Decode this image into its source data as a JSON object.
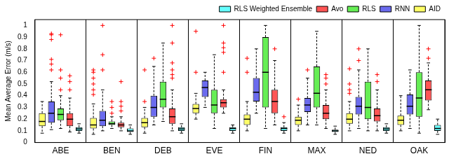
{
  "chart_data": {
    "type": "boxplot",
    "y_label": "Mean Average Error (m/s)",
    "categories": [
      "ABE",
      "BEN",
      "DEB",
      "EVE",
      "FIN",
      "MAX",
      "NED",
      "OAK"
    ],
    "ylim": [
      0,
      1.05
    ],
    "yticks": [
      0,
      0.1,
      0.2,
      0.3,
      0.4,
      0.5,
      0.6,
      0.7,
      0.8,
      0.9,
      1
    ],
    "grid": false,
    "legend": "top",
    "series": [
      {
        "name": "RLS Weighted Ensemble",
        "color": "#66ffff",
        "values": [
          {
            "min": 0.08,
            "q1": 0.1,
            "median": 0.115,
            "q3": 0.13,
            "max": 0.16,
            "outliers": []
          },
          {
            "min": 0.07,
            "q1": 0.09,
            "median": 0.1,
            "q3": 0.12,
            "max": 0.15,
            "outliers": []
          },
          {
            "min": 0.08,
            "q1": 0.1,
            "median": 0.115,
            "q3": 0.13,
            "max": 0.16,
            "outliers": []
          },
          {
            "min": 0.08,
            "q1": 0.1,
            "median": 0.12,
            "q3": 0.13,
            "max": 0.15,
            "outliers": []
          },
          {
            "min": 0.08,
            "q1": 0.1,
            "median": 0.12,
            "q3": 0.13,
            "max": 0.17,
            "outliers": [
              0.22
            ]
          },
          {
            "min": 0.07,
            "q1": 0.09,
            "median": 0.1,
            "q3": 0.11,
            "max": 0.14,
            "outliers": []
          },
          {
            "min": 0.08,
            "q1": 0.1,
            "median": 0.115,
            "q3": 0.13,
            "max": 0.16,
            "outliers": []
          },
          {
            "min": 0.07,
            "q1": 0.1,
            "median": 0.12,
            "q3": 0.15,
            "max": 0.2,
            "outliers": []
          }
        ]
      },
      {
        "name": "Avo",
        "color": "#ff5555",
        "values": [
          {
            "min": 0.09,
            "q1": 0.14,
            "median": 0.2,
            "q3": 0.25,
            "max": 0.38,
            "outliers": [
              0.45,
              0.52,
              0.57
            ]
          },
          {
            "min": 0.1,
            "q1": 0.13,
            "median": 0.15,
            "q3": 0.17,
            "max": 0.22,
            "outliers": [
              0.27,
              0.31,
              0.35,
              0.52
            ]
          },
          {
            "min": 0.1,
            "q1": 0.16,
            "median": 0.22,
            "q3": 0.29,
            "max": 0.45,
            "outliers": [
              0.55,
              0.58,
              0.62,
              0.68,
              0.85,
              1.0
            ]
          },
          {
            "min": 0.25,
            "q1": 0.3,
            "median": 0.34,
            "q3": 0.37,
            "max": 0.45,
            "outliers": [
              0.6,
              0.77,
              0.81,
              0.85,
              1.0
            ]
          },
          {
            "min": 0.15,
            "q1": 0.25,
            "median": 0.35,
            "q3": 0.45,
            "max": 0.7,
            "outliers": [
              0.8
            ]
          },
          {
            "min": 0.12,
            "q1": 0.2,
            "median": 0.25,
            "q3": 0.32,
            "max": 0.45,
            "outliers": [
              0.5,
              0.55,
              0.58
            ]
          },
          {
            "min": 0.1,
            "q1": 0.18,
            "median": 0.23,
            "q3": 0.29,
            "max": 0.45,
            "outliers": [
              0.52,
              0.58
            ]
          },
          {
            "min": 0.28,
            "q1": 0.36,
            "median": 0.45,
            "q3": 0.53,
            "max": 0.68,
            "outliers": [
              0.72,
              0.8
            ]
          }
        ]
      },
      {
        "name": "RLS",
        "color": "#66ee55",
        "values": [
          {
            "min": 0.12,
            "q1": 0.19,
            "median": 0.24,
            "q3": 0.29,
            "max": 0.4,
            "outliers": [
              0.45,
              0.55,
              0.62,
              0.92
            ]
          },
          {
            "min": 0.12,
            "q1": 0.15,
            "median": 0.16,
            "q3": 0.18,
            "max": 0.22,
            "outliers": [
              0.25,
              0.3,
              0.35
            ]
          },
          {
            "min": 0.18,
            "q1": 0.3,
            "median": 0.37,
            "q3": 0.52,
            "max": 0.85,
            "outliers": []
          },
          {
            "min": 0.12,
            "q1": 0.25,
            "median": 0.32,
            "q3": 0.45,
            "max": 0.75,
            "outliers": []
          },
          {
            "min": 0.12,
            "q1": 0.3,
            "median": 0.6,
            "q3": 0.9,
            "max": 1.0,
            "outliers": []
          },
          {
            "min": 0.15,
            "q1": 0.3,
            "median": 0.42,
            "q3": 0.65,
            "max": 0.95,
            "outliers": []
          },
          {
            "min": 0.1,
            "q1": 0.2,
            "median": 0.3,
            "q3": 0.52,
            "max": 0.8,
            "outliers": []
          },
          {
            "min": 0.08,
            "q1": 0.22,
            "median": 0.38,
            "q3": 0.6,
            "max": 1.0,
            "outliers": []
          }
        ]
      },
      {
        "name": "RNN",
        "color": "#6b6bee",
        "values": [
          {
            "min": 0.11,
            "q1": 0.17,
            "median": 0.25,
            "q3": 0.35,
            "max": 0.52,
            "outliers": [
              0.62,
              0.67,
              0.71,
              0.88,
              0.92,
              0.93
            ]
          },
          {
            "min": 0.1,
            "q1": 0.14,
            "median": 0.19,
            "q3": 0.27,
            "max": 0.45,
            "outliers": [
              0.62,
              0.75,
              1.0
            ]
          },
          {
            "min": 0.15,
            "q1": 0.22,
            "median": 0.3,
            "q3": 0.4,
            "max": 0.65,
            "outliers": [
              0.72
            ]
          },
          {
            "min": 0.3,
            "q1": 0.39,
            "median": 0.47,
            "q3": 0.53,
            "max": 0.6,
            "outliers": []
          },
          {
            "min": 0.25,
            "q1": 0.35,
            "median": 0.43,
            "q3": 0.55,
            "max": 0.8,
            "outliers": []
          },
          {
            "min": 0.15,
            "q1": 0.26,
            "median": 0.32,
            "q3": 0.38,
            "max": 0.55,
            "outliers": [
              0.62
            ]
          },
          {
            "min": 0.12,
            "q1": 0.24,
            "median": 0.31,
            "q3": 0.39,
            "max": 0.62,
            "outliers": [
              0.7,
              0.8
            ]
          },
          {
            "min": 0.12,
            "q1": 0.24,
            "median": 0.31,
            "q3": 0.41,
            "max": 0.62,
            "outliers": []
          }
        ]
      },
      {
        "name": "AID",
        "color": "#ffff66",
        "values": [
          {
            "min": 0.08,
            "q1": 0.14,
            "median": 0.18,
            "q3": 0.25,
            "max": 0.35,
            "outliers": []
          },
          {
            "min": 0.07,
            "q1": 0.12,
            "median": 0.15,
            "q3": 0.21,
            "max": 0.33,
            "outliers": [
              0.41,
              0.45,
              0.5,
              0.55,
              0.6,
              0.62
            ]
          },
          {
            "min": 0.08,
            "q1": 0.13,
            "median": 0.17,
            "q3": 0.21,
            "max": 0.3,
            "outliers": [
              0.35,
              0.62
            ]
          },
          {
            "min": 0.2,
            "q1": 0.25,
            "median": 0.29,
            "q3": 0.33,
            "max": 0.42,
            "outliers": [
              0.6,
              0.95
            ]
          },
          {
            "min": 0.1,
            "q1": 0.15,
            "median": 0.2,
            "q3": 0.24,
            "max": 0.35,
            "outliers": [
              0.6,
              0.72
            ]
          },
          {
            "min": 0.1,
            "q1": 0.15,
            "median": 0.19,
            "q3": 0.22,
            "max": 0.32,
            "outliers": [
              0.37
            ]
          },
          {
            "min": 0.1,
            "q1": 0.16,
            "median": 0.2,
            "q3": 0.25,
            "max": 0.35,
            "outliers": [
              0.42,
              0.45,
              0.5,
              0.63
            ]
          },
          {
            "min": 0.1,
            "q1": 0.15,
            "median": 0.19,
            "q3": 0.23,
            "max": 0.4,
            "outliers": []
          }
        ]
      }
    ]
  }
}
